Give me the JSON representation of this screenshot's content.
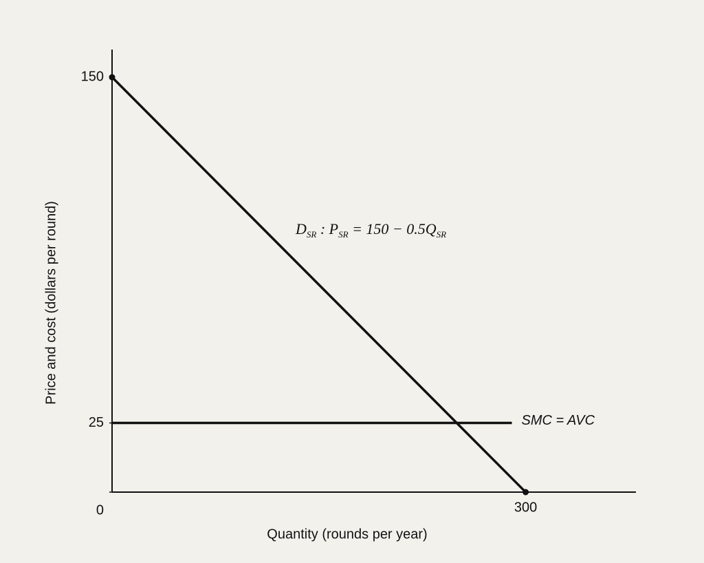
{
  "chart_data": {
    "type": "line",
    "y_label": "Price and cost (dollars per round)",
    "x_label": "Quantity (rounds per year)",
    "xlim": [
      0,
      380
    ],
    "ylim": [
      0,
      160
    ],
    "xticks": [
      300
    ],
    "yticks": [
      0,
      25,
      150
    ],
    "series": [
      {
        "name": [
          [
            "D",
            "SR"
          ],
          [
            " : P",
            "SR"
          ],
          [
            " = 150 − 0.5Q",
            "SR"
          ]
        ],
        "color": "#111111",
        "x": [
          0,
          300
        ],
        "values": [
          150,
          0
        ],
        "endpoints": true
      },
      {
        "name": "SMC = AVC",
        "color": "#111111",
        "x": [
          0,
          290
        ],
        "values": [
          25,
          25
        ],
        "endpoints": false
      }
    ]
  }
}
